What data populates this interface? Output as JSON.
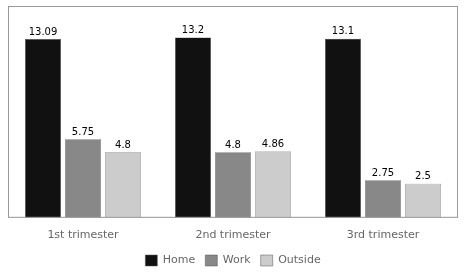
{
  "chart_data": {
    "type": "bar",
    "categories": [
      "1st trimester",
      "2nd trimester",
      "3rd trimester"
    ],
    "series": [
      {
        "name": "Home",
        "color": "#111111",
        "values": [
          13.09,
          13.2,
          13.1
        ]
      },
      {
        "name": "Work",
        "color": "#888888",
        "values": [
          5.75,
          4.8,
          2.75
        ]
      },
      {
        "name": "Outside",
        "color": "#cccccc",
        "values": [
          4.8,
          4.86,
          2.5
        ]
      }
    ],
    "ylim": [
      0,
      15.5
    ],
    "data_labels": true,
    "tick_labels": "x",
    "grid": false,
    "legend": "bottom"
  }
}
